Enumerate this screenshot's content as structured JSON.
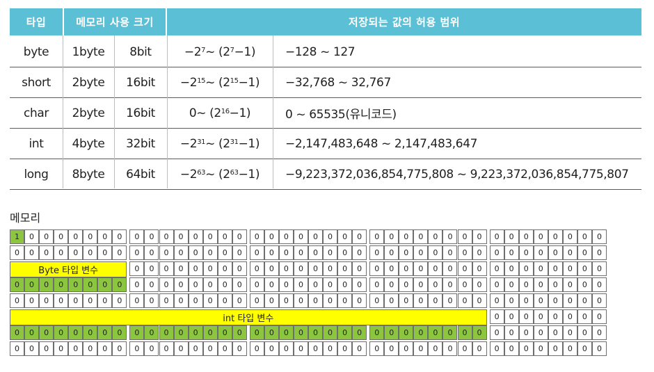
{
  "table": {
    "headers": {
      "type": "타입",
      "memory_size": "메모리 사용 크기",
      "range": "저장되는 값의 허용 범위"
    },
    "rows": [
      {
        "type": "byte",
        "bytes": "1byte",
        "bits": "8bit",
        "range_base1": "−2",
        "range_exp1": "7",
        "range_mid": " ~ (2",
        "range_exp2": "7",
        "range_end": "−1)",
        "value_range": "−128 ~ 127"
      },
      {
        "type": "short",
        "bytes": "2byte",
        "bits": "16bit",
        "range_base1": "−2",
        "range_exp1": "15",
        "range_mid": " ~ (2",
        "range_exp2": "15",
        "range_end": "−1)",
        "value_range": "−32,768 ~ 32,767"
      },
      {
        "type": "char",
        "bytes": "2byte",
        "bits": "16bit",
        "range_base1": "0",
        "range_exp1": "",
        "range_mid": " ~ (2",
        "range_exp2": "16",
        "range_end": "−1)",
        "value_range": "0 ~ 65535(유니코드)"
      },
      {
        "type": "int",
        "bytes": "4byte",
        "bits": "32bit",
        "range_base1": "−2",
        "range_exp1": "31",
        "range_mid": " ~ (2",
        "range_exp2": "31",
        "range_end": "−1)",
        "value_range": "−2,147,483,648 ~ 2,147,483,647"
      },
      {
        "type": "long",
        "bytes": "8byte",
        "bits": "64bit",
        "range_base1": "−2",
        "range_exp1": "63",
        "range_mid": " ~ (2",
        "range_exp2": "63",
        "range_end": "−1)",
        "value_range": "−9,223,372,036,854,775,808 ~ 9,223,372,036,854,775,807"
      }
    ]
  },
  "memory": {
    "title": "메모리",
    "rows": 8,
    "cols": 40,
    "cell_value": "0",
    "first_cell_value": "1",
    "byte_label": "Byte 타입 변수",
    "int_label": "int 타입 변수",
    "colors": {
      "green": "#8cc63f",
      "yellow": "#ffff00",
      "header": "#5bc0d5"
    }
  }
}
